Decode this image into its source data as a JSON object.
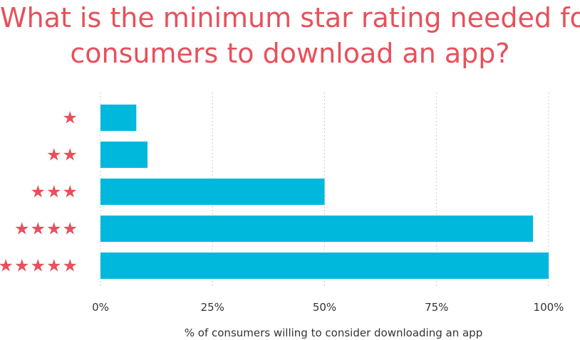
{
  "chart_data": {
    "type": "bar",
    "orientation": "horizontal",
    "title_lines": [
      "What is the minimum star rating needed for",
      "consumers to download an app?"
    ],
    "categories": [
      "★",
      "★★",
      "★★★",
      "★★★★",
      "★★★★★"
    ],
    "values": [
      8,
      10.5,
      50,
      96.5,
      100
    ],
    "xlabel": "% of consumers willing to consider downloading an app",
    "ylabel": "",
    "xlim": [
      0,
      100
    ],
    "xticks": [
      0,
      25,
      50,
      75,
      100
    ],
    "xtick_labels": [
      "0%",
      "25%",
      "50%",
      "75%",
      "100%"
    ],
    "grid": "vertical-dotted",
    "legend": "none",
    "colors": {
      "bar": "#00b8dc",
      "title": "#e8505b",
      "star": "#e8505b",
      "grid": "#cccccc",
      "text": "#333333"
    }
  }
}
